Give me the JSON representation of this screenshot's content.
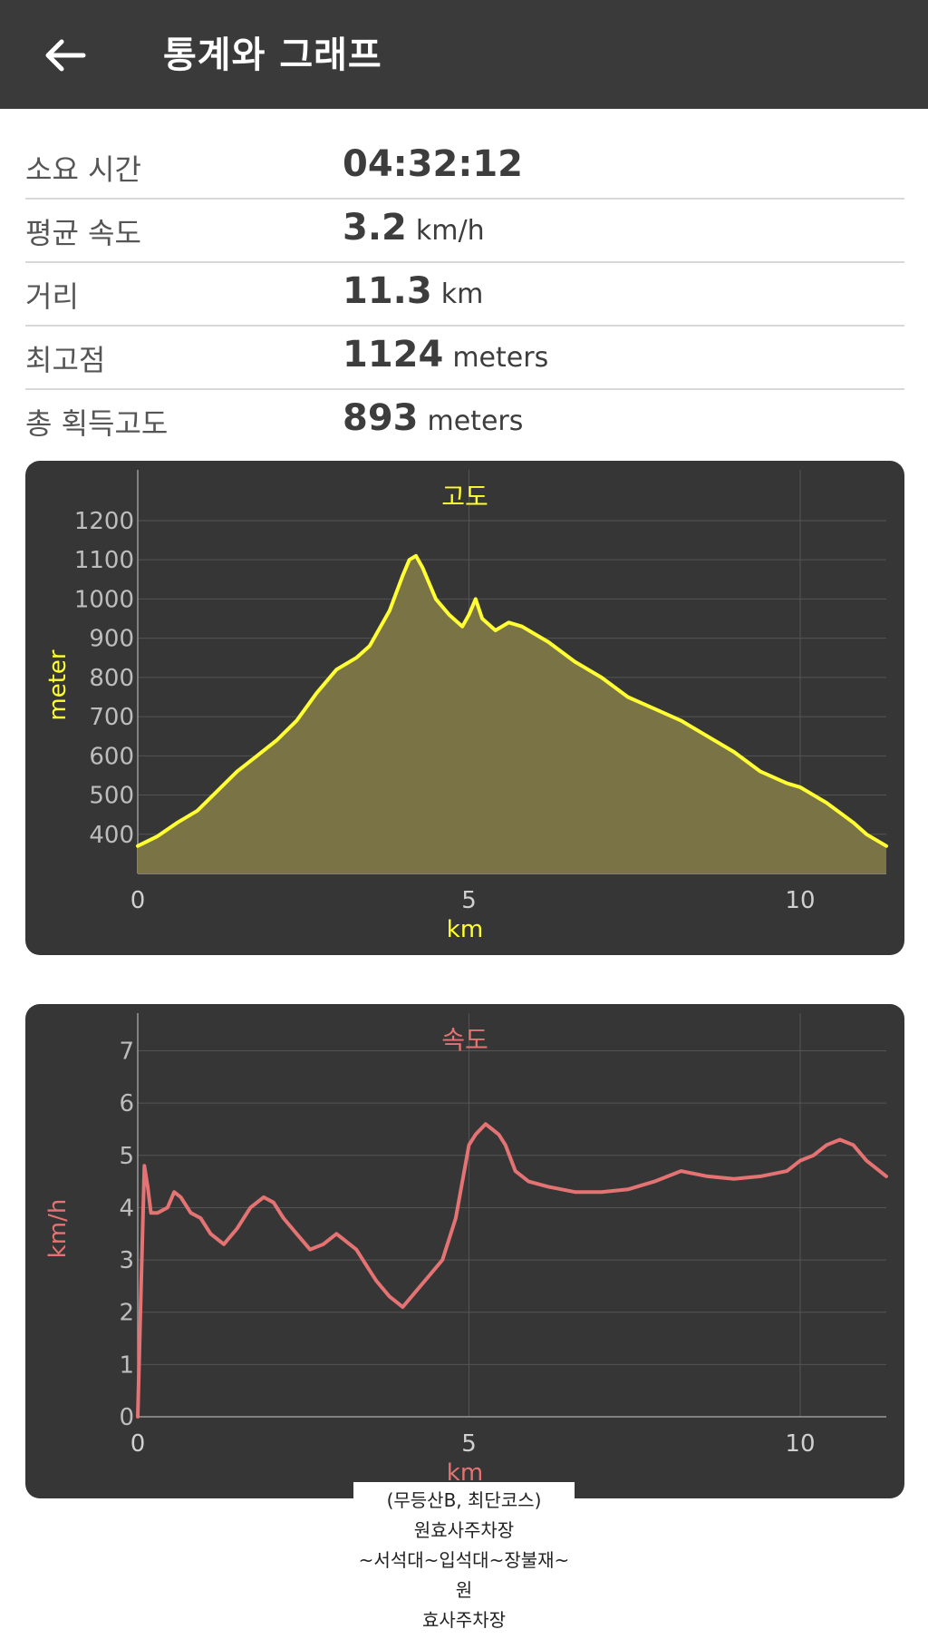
{
  "header": {
    "title": "통계와 그래프"
  },
  "stats": [
    {
      "label": "소요 시간",
      "value": "04:32:12",
      "unit": ""
    },
    {
      "label": "평균 속도",
      "value": "3.2",
      "unit": "km/h"
    },
    {
      "label": "거리",
      "value": "11.3",
      "unit": "km"
    },
    {
      "label": "최고점",
      "value": "1124",
      "unit": "meters"
    },
    {
      "label": "총 획득고도",
      "value": "893",
      "unit": "meters"
    }
  ],
  "colors": {
    "appbar": "#3a3a3a",
    "card": "#363636",
    "elevation": "#ffff33",
    "elevation_fill": "#7a7346",
    "speed": "#e57373"
  },
  "chart_data": [
    {
      "type": "area",
      "title": "고도",
      "xlabel": "km",
      "ylabel": "meter",
      "xlim": [
        0,
        11.3
      ],
      "ylim": [
        300,
        1260
      ],
      "xticks": [
        0,
        5,
        10
      ],
      "yticks": [
        400,
        500,
        600,
        700,
        800,
        900,
        1000,
        1100,
        1200
      ],
      "grid": true,
      "x": [
        0,
        0.3,
        0.6,
        0.9,
        1.2,
        1.5,
        1.8,
        2.1,
        2.4,
        2.7,
        3.0,
        3.3,
        3.5,
        3.8,
        4.0,
        4.1,
        4.2,
        4.3,
        4.5,
        4.7,
        4.9,
        5.0,
        5.1,
        5.2,
        5.4,
        5.6,
        5.8,
        6.2,
        6.6,
        7.0,
        7.4,
        7.8,
        8.2,
        8.6,
        9.0,
        9.4,
        9.8,
        10.0,
        10.4,
        10.8,
        11.0,
        11.3
      ],
      "y": [
        370,
        395,
        430,
        460,
        510,
        560,
        600,
        640,
        690,
        760,
        820,
        850,
        880,
        970,
        1060,
        1100,
        1110,
        1080,
        1000,
        960,
        930,
        960,
        1000,
        950,
        920,
        940,
        930,
        890,
        840,
        800,
        750,
        720,
        690,
        650,
        610,
        560,
        530,
        520,
        480,
        430,
        400,
        370
      ]
    },
    {
      "type": "line",
      "title": "속도",
      "xlabel": "km",
      "ylabel": "km/h",
      "xlim": [
        0,
        11.3
      ],
      "ylim": [
        0,
        7.2
      ],
      "xticks": [
        0,
        5,
        10
      ],
      "yticks": [
        0,
        1,
        2,
        3,
        4,
        5,
        6,
        7
      ],
      "grid": true,
      "x": [
        0,
        0.05,
        0.1,
        0.15,
        0.2,
        0.3,
        0.45,
        0.55,
        0.65,
        0.8,
        0.95,
        1.1,
        1.3,
        1.5,
        1.7,
        1.9,
        2.05,
        2.2,
        2.4,
        2.6,
        2.8,
        3.0,
        3.1,
        3.3,
        3.5,
        3.6,
        3.8,
        3.9,
        4.0,
        4.2,
        4.4,
        4.6,
        4.8,
        4.9,
        5.0,
        5.1,
        5.25,
        5.35,
        5.45,
        5.55,
        5.7,
        5.9,
        6.2,
        6.6,
        7.0,
        7.4,
        7.8,
        8.2,
        8.6,
        9.0,
        9.4,
        9.8,
        10.0,
        10.2,
        10.4,
        10.6,
        10.8,
        11.0,
        11.3
      ],
      "y": [
        0,
        2.5,
        4.8,
        4.4,
        3.9,
        3.9,
        4.0,
        4.3,
        4.2,
        3.9,
        3.8,
        3.5,
        3.3,
        3.6,
        4.0,
        4.2,
        4.1,
        3.8,
        3.5,
        3.2,
        3.3,
        3.5,
        3.4,
        3.2,
        2.8,
        2.6,
        2.3,
        2.2,
        2.1,
        2.4,
        2.7,
        3.0,
        3.8,
        4.5,
        5.2,
        5.4,
        5.6,
        5.5,
        5.4,
        5.2,
        4.7,
        4.5,
        4.4,
        4.3,
        4.3,
        4.35,
        4.5,
        4.7,
        4.6,
        4.55,
        4.6,
        4.7,
        4.9,
        5.0,
        5.2,
        5.3,
        5.2,
        4.9,
        4.6
      ]
    }
  ],
  "caption": {
    "lines": [
      "(무등산B, 최단코스)",
      "원효사주차장",
      "~서석대~입석대~장불재~원",
      "효사주차장"
    ]
  }
}
